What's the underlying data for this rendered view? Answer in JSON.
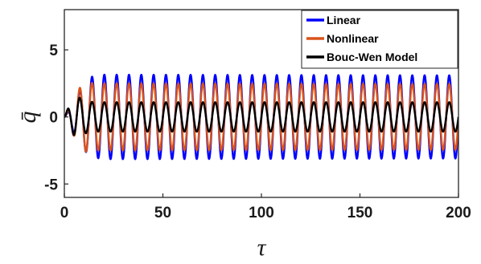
{
  "chart_data": {
    "type": "line",
    "title": "",
    "xlabel": "τ",
    "ylabel": "q̄",
    "xlim": [
      0,
      200
    ],
    "ylim": [
      -6,
      8
    ],
    "xticks": [
      0,
      50,
      100,
      150,
      200
    ],
    "yticks": [
      -5,
      0,
      5
    ],
    "grid": false,
    "legend_position": "top-right",
    "series": [
      {
        "name": "Linear",
        "color": "#0000ff",
        "omega": 1.0053,
        "peaks": [
          [
            0,
            0
          ],
          [
            2,
            0.4
          ],
          [
            6,
            1.5
          ],
          [
            10,
            2.5
          ],
          [
            14,
            3.0
          ],
          [
            20,
            3.15
          ],
          [
            200,
            3.1
          ]
        ]
      },
      {
        "name": "Nonlinear",
        "color": "#d95319",
        "omega": 1.0053,
        "peaks": [
          [
            0,
            0
          ],
          [
            2,
            0.5
          ],
          [
            6,
            1.8
          ],
          [
            8,
            2.2
          ],
          [
            11,
            2.6
          ],
          [
            16,
            2.5
          ],
          [
            200,
            2.45
          ]
        ]
      },
      {
        "name": "Bouc-Wen Model",
        "color": "#000000",
        "omega": 1.0053,
        "peaks": [
          [
            0,
            0
          ],
          [
            2,
            0.7
          ],
          [
            5,
            1.4
          ],
          [
            7,
            1.5
          ],
          [
            10,
            1.25
          ],
          [
            15,
            1.1
          ],
          [
            200,
            1.1
          ]
        ]
      }
    ]
  }
}
